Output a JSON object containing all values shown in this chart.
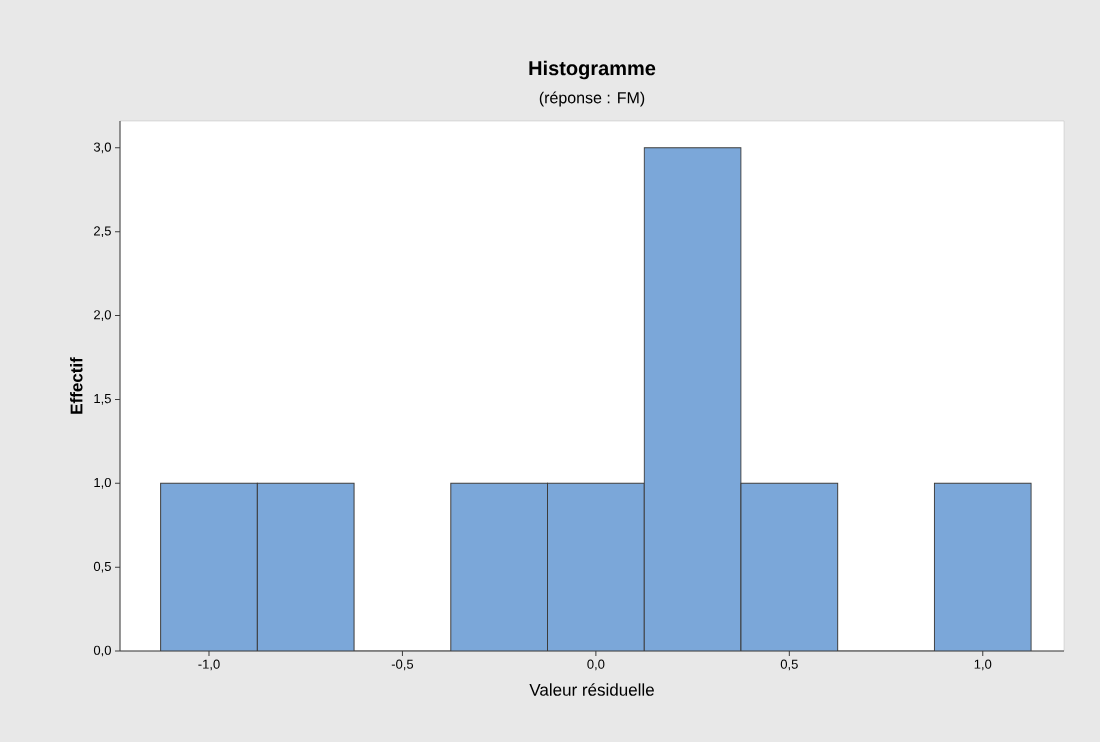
{
  "chart_data": {
    "type": "histogram",
    "title": "Histogramme",
    "subtitle": "(réponse : FM)",
    "xlabel": "Valeur résiduelle",
    "ylabel": "Effectif",
    "bins": [
      -1.125,
      -0.875,
      -0.625,
      -0.375,
      -0.125,
      0.125,
      0.375,
      0.625,
      0.875,
      1.125
    ],
    "values": [
      1,
      1,
      0,
      1,
      1,
      3,
      1,
      0,
      1
    ],
    "color": "#7ba7d9",
    "xlim": [
      -1.23,
      1.21
    ],
    "ylim": [
      0,
      3.16
    ],
    "xticks": [
      {
        "value": -1,
        "label": "-1,0"
      },
      {
        "value": -0.5,
        "label": "-0,5"
      },
      {
        "value": 0,
        "label": "0,0"
      },
      {
        "value": 0.5,
        "label": "0,5"
      },
      {
        "value": 1,
        "label": "1,0"
      }
    ],
    "yticks": [
      {
        "value": 0,
        "label": "0,0"
      },
      {
        "value": 0.5,
        "label": "0,5"
      },
      {
        "value": 1,
        "label": "1,0"
      },
      {
        "value": 1.5,
        "label": "1,5"
      },
      {
        "value": 2,
        "label": "2,0"
      },
      {
        "value": 2.5,
        "label": "2,5"
      },
      {
        "value": 3,
        "label": "3,0"
      }
    ],
    "grid": false
  }
}
